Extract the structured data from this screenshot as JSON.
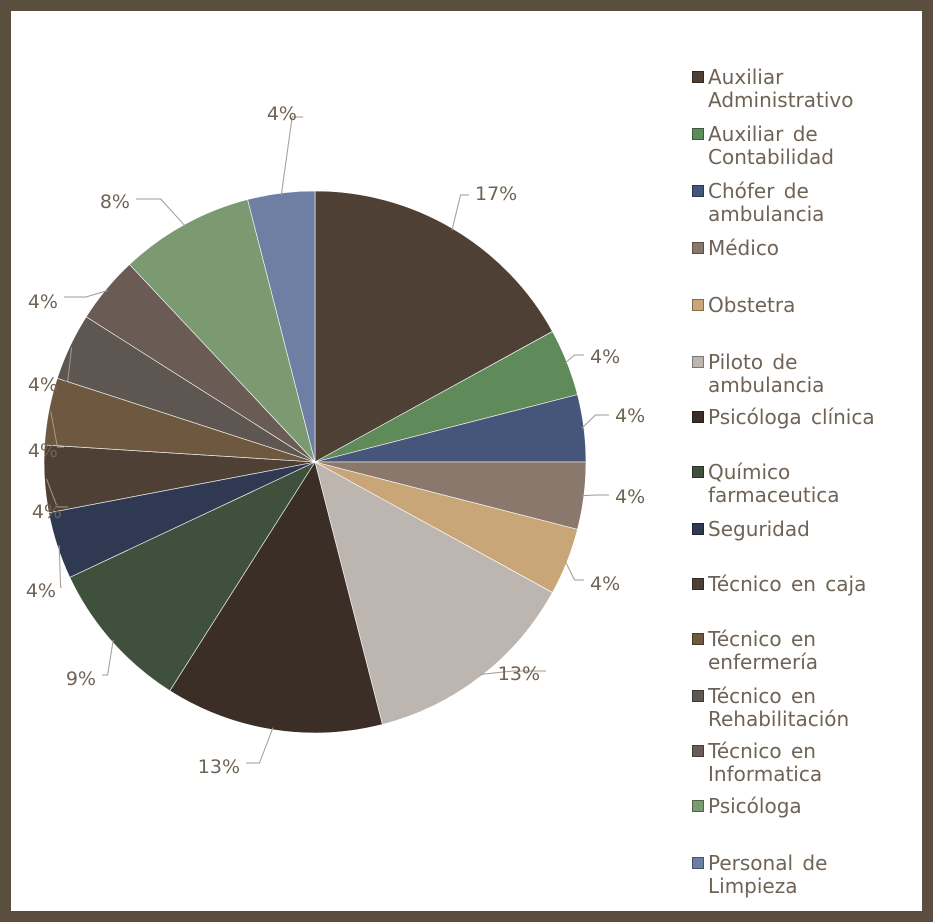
{
  "chart_data": {
    "type": "pie",
    "title": "",
    "legend_position": "right",
    "categories": [
      "Auxiliar Administrativo",
      "Auxiliar de Contabilidad",
      "Chófer de ambulancia",
      "Médico",
      "Obstetra",
      "Piloto de ambulancia",
      "Psicóloga clínica",
      "Químico farmaceutica",
      "Seguridad",
      "Técnico en caja",
      "Técnico en enfermería",
      "Técnico en Rehabilitación",
      "Técnico en Informatica",
      "Psicóloga",
      "Personal de Limpieza"
    ],
    "values": [
      17,
      4,
      4,
      4,
      4,
      13,
      13,
      9,
      4,
      4,
      4,
      4,
      4,
      8,
      4
    ],
    "data_labels": [
      "17%",
      "4%",
      "4%",
      "4%",
      "4%",
      "13%",
      "13%",
      "9%",
      "4%",
      "4%",
      "4%",
      "4%",
      "4%",
      "8%",
      "4%"
    ],
    "colors": [
      "#4f4036",
      "#5f8a5a",
      "#46557a",
      "#8a786c",
      "#c9a678",
      "#bdb6b0",
      "#3a2e27",
      "#3f513c",
      "#2f3a52",
      "#4f4036",
      "#6e5940",
      "#5d5651",
      "#6b5b55",
      "#7b9a72",
      "#6f7ea3"
    ]
  }
}
